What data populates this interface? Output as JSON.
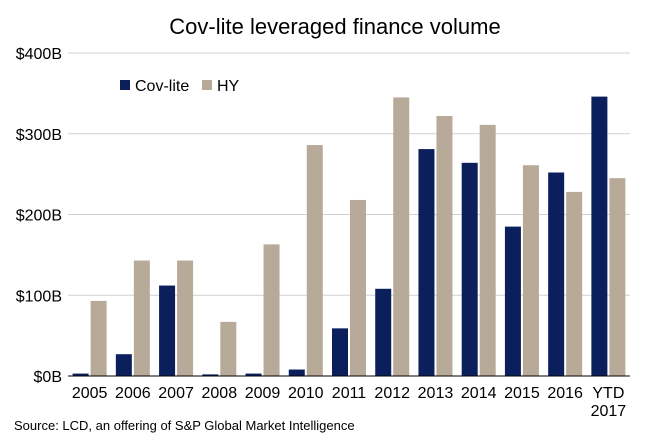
{
  "chart_data": {
    "type": "bar",
    "title": "Cov-lite leveraged finance volume",
    "categories": [
      "2005",
      "2006",
      "2007",
      "2008",
      "2009",
      "2010",
      "2011",
      "2012",
      "2013",
      "2014",
      "2015",
      "2016",
      "YTD 2017"
    ],
    "series": [
      {
        "name": "Cov-lite",
        "color": "#0b1f5c",
        "values": [
          3,
          27,
          112,
          2,
          3,
          8,
          59,
          108,
          281,
          264,
          185,
          252,
          346
        ]
      },
      {
        "name": "HY",
        "color": "#b8aa99",
        "values": [
          93,
          143,
          143,
          67,
          163,
          286,
          218,
          345,
          322,
          311,
          261,
          228,
          245
        ]
      }
    ],
    "y_ticks": [
      "$0B",
      "$100B",
      "$200B",
      "$300B",
      "$400B"
    ],
    "ylim": [
      0,
      400
    ],
    "grid": true,
    "legend_position": "top-left",
    "xlabel": "",
    "ylabel": "",
    "source": "Source: LCD, an offering of S&P Global Market Intelligence"
  }
}
